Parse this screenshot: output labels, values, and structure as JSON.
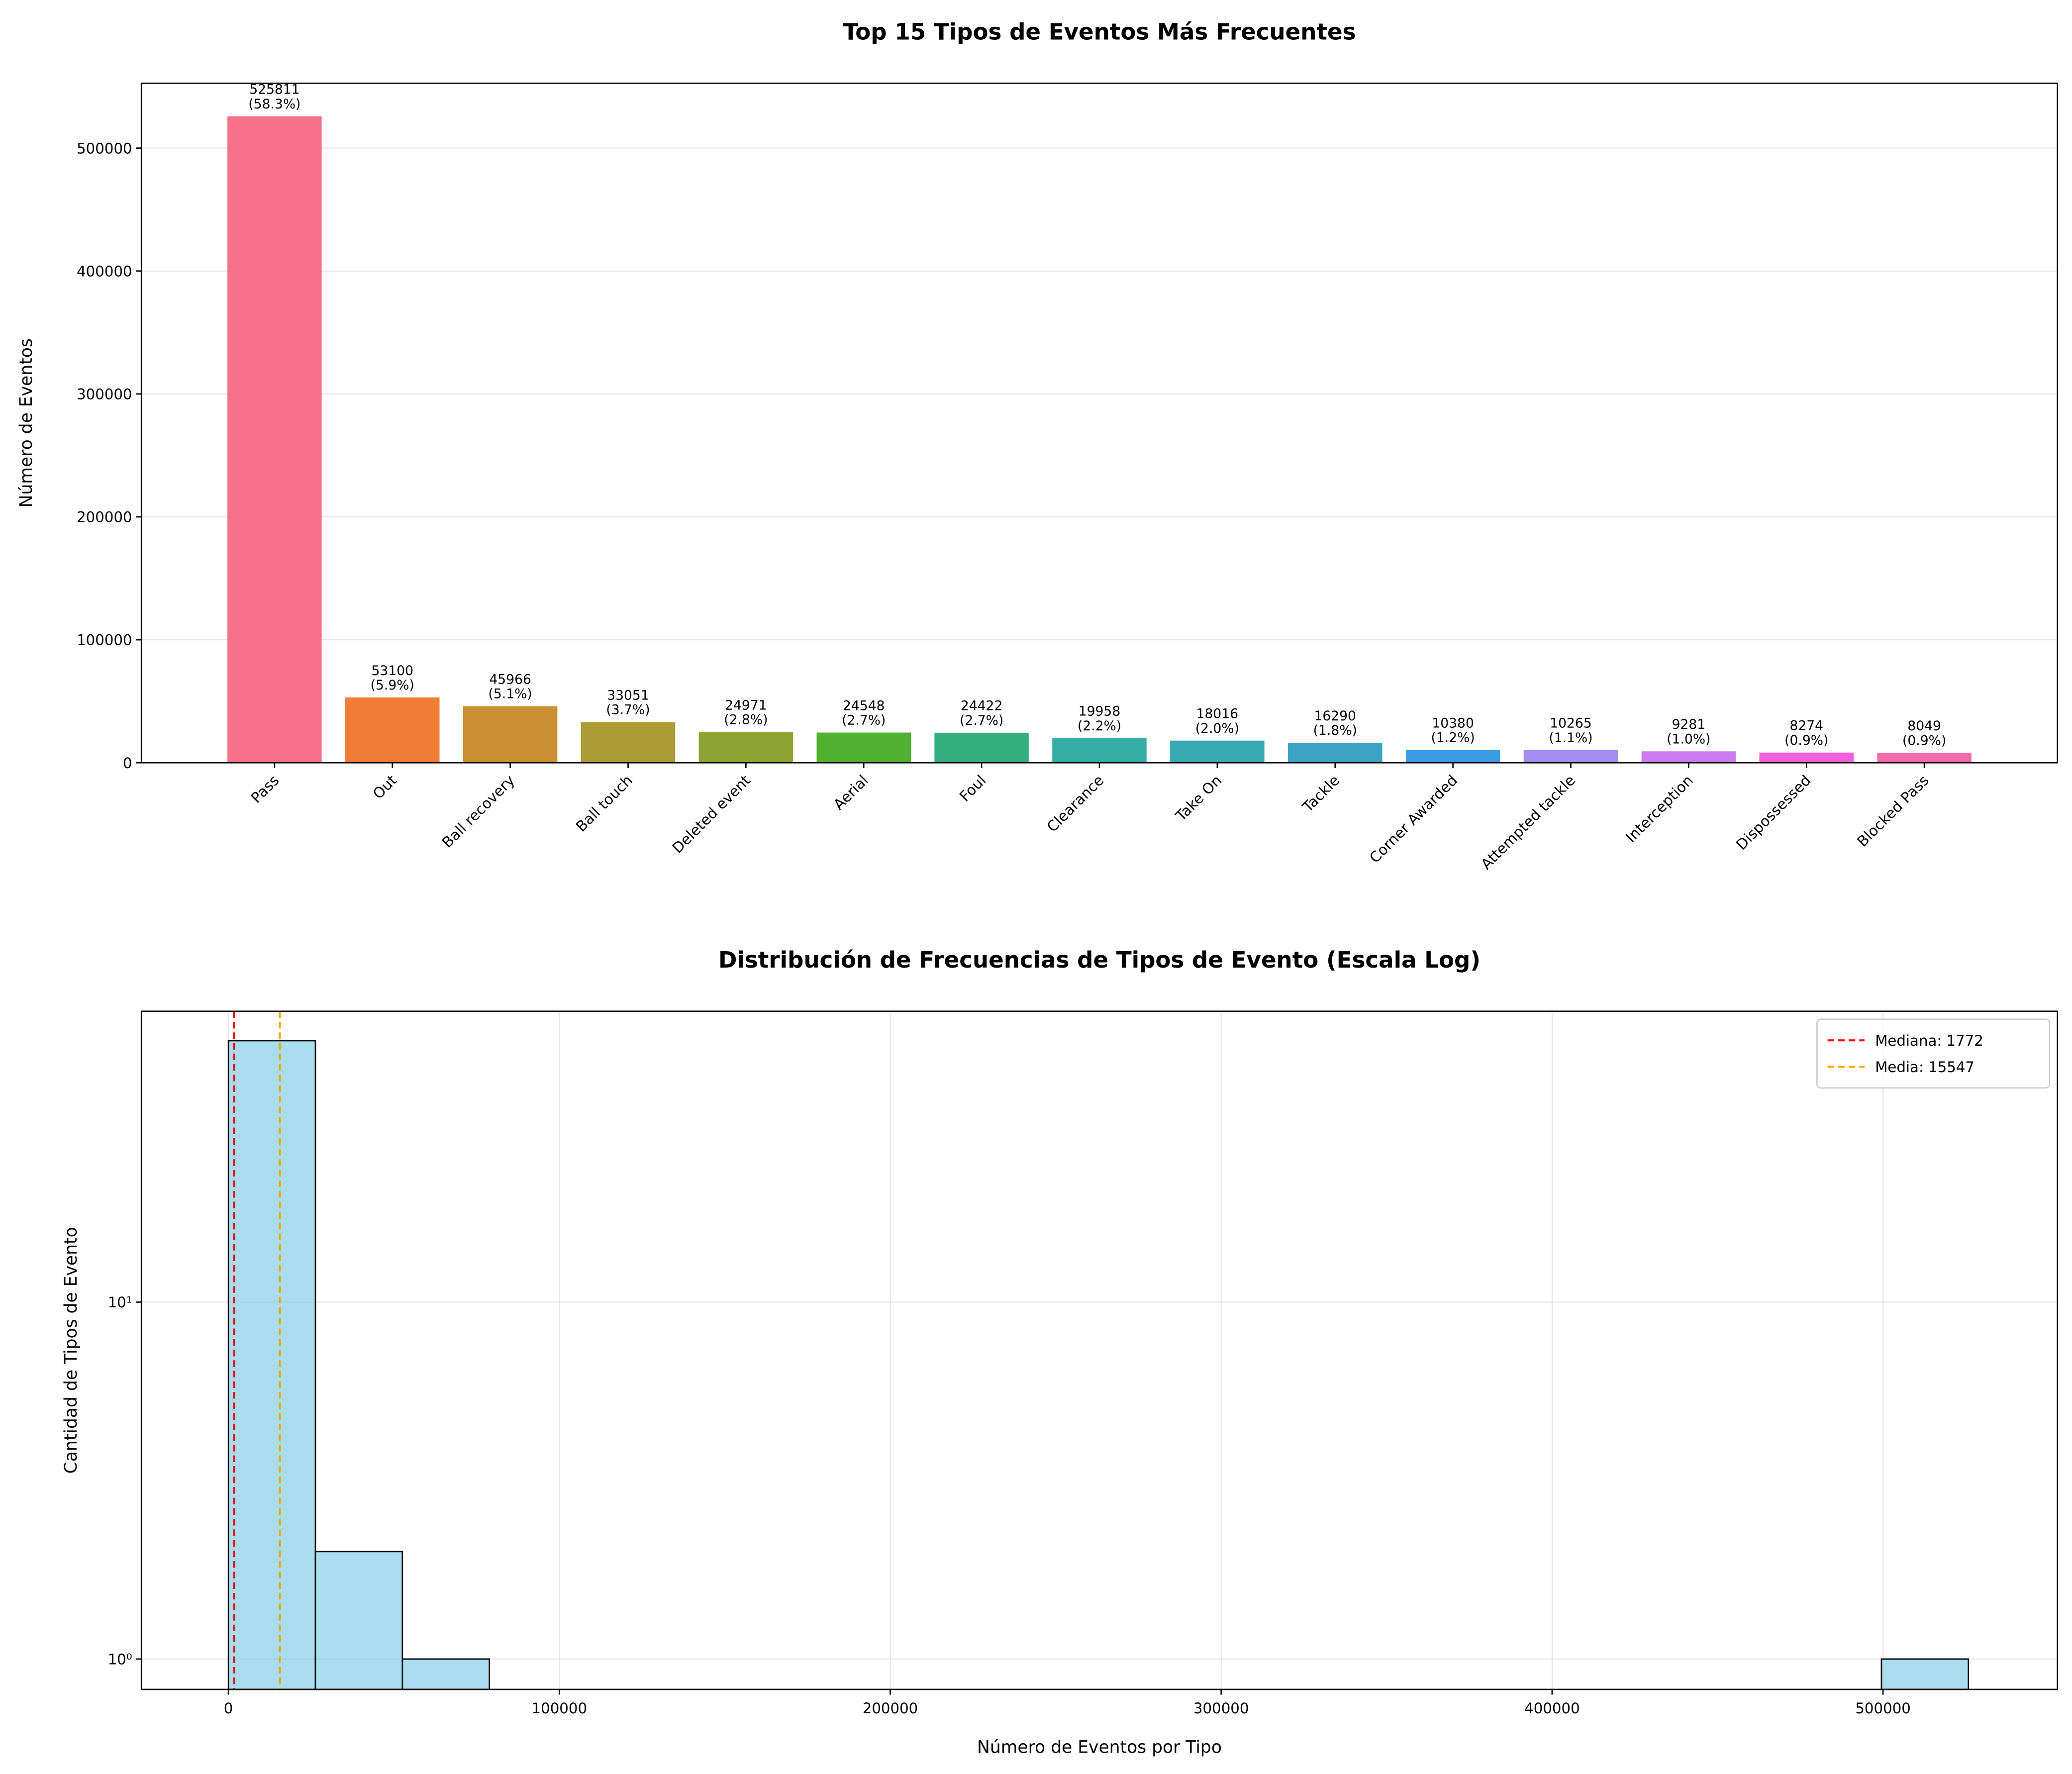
{
  "chart_data": [
    {
      "type": "bar",
      "title": "Top 15 Tipos de Eventos Más Frecuentes",
      "ylabel": "Número de Eventos",
      "categories": [
        "Pass",
        "Out",
        "Ball recovery",
        "Ball touch",
        "Deleted event",
        "Aerial",
        "Foul",
        "Clearance",
        "Take On",
        "Tackle",
        "Corner Awarded",
        "Attempted tackle",
        "Interception",
        "Dispossessed",
        "Blocked Pass"
      ],
      "values": [
        525811,
        53100,
        45966,
        33051,
        24971,
        24548,
        24422,
        19958,
        18016,
        16290,
        10380,
        10265,
        9281,
        8274,
        8049
      ],
      "value_labels": [
        "525811\n(58.3%)",
        "53100\n(5.9%)",
        "45966\n(5.1%)",
        "33051\n(3.7%)",
        "24971\n(2.8%)",
        "24548\n(2.7%)",
        "24422\n(2.7%)",
        "19958\n(2.2%)",
        "18016\n(2.0%)",
        "16290\n(1.8%)",
        "10380\n(1.2%)",
        "10265\n(1.1%)",
        "9281\n(1.0%)",
        "8274\n(0.9%)",
        "8049\n(0.9%)"
      ],
      "colors": [
        "#f77189",
        "#ef7d36",
        "#c99034",
        "#ab9c33",
        "#8ea533",
        "#50b131",
        "#35ae7f",
        "#36ada4",
        "#38a9b0",
        "#3ba3c4",
        "#3b9be4",
        "#a48cf4",
        "#cc7af4",
        "#f55fdc",
        "#f66bad"
      ],
      "ylim": [
        0,
        552700
      ],
      "yticks": [
        0,
        100000,
        200000,
        300000,
        400000,
        500000
      ],
      "grid": true
    },
    {
      "type": "histogram",
      "title": "Distribución de Frecuencias de Tipos de Evento (Escala Log)",
      "xlabel": "Número de Eventos por Tipo",
      "ylabel": "Cantidad de Tipos de Evento",
      "bins": [
        1,
        26291.5,
        52582,
        78872.5,
        105163,
        131453.5,
        157744,
        184034.5,
        210325,
        236615.5,
        262906,
        289196.5,
        315487,
        341777.5,
        368068,
        394358.5,
        420649,
        446939.5,
        473230,
        499520.5,
        525811
      ],
      "values": [
        54,
        2,
        1,
        0,
        0,
        0,
        0,
        0,
        0,
        0,
        0,
        0,
        0,
        0,
        0,
        0,
        0,
        0,
        0,
        1
      ],
      "color": "#87ceeb",
      "edgecolor": "#000000",
      "xlim": [
        -26290,
        552716
      ],
      "xticks": [
        0,
        100000,
        200000,
        300000,
        400000,
        500000
      ],
      "ylim": [
        0.822,
        65.3
      ],
      "ylog": true,
      "yticks": [
        {
          "value": 1,
          "label": "10⁰"
        },
        {
          "value": 10,
          "label": "10¹"
        }
      ],
      "grid": true,
      "legend": "upper right",
      "lines": [
        {
          "name": "Mediana: 1772",
          "value": 1772,
          "color": "#ff0000"
        },
        {
          "name": "Media: 15547",
          "value": 15547,
          "color": "#ffa500"
        }
      ]
    }
  ]
}
